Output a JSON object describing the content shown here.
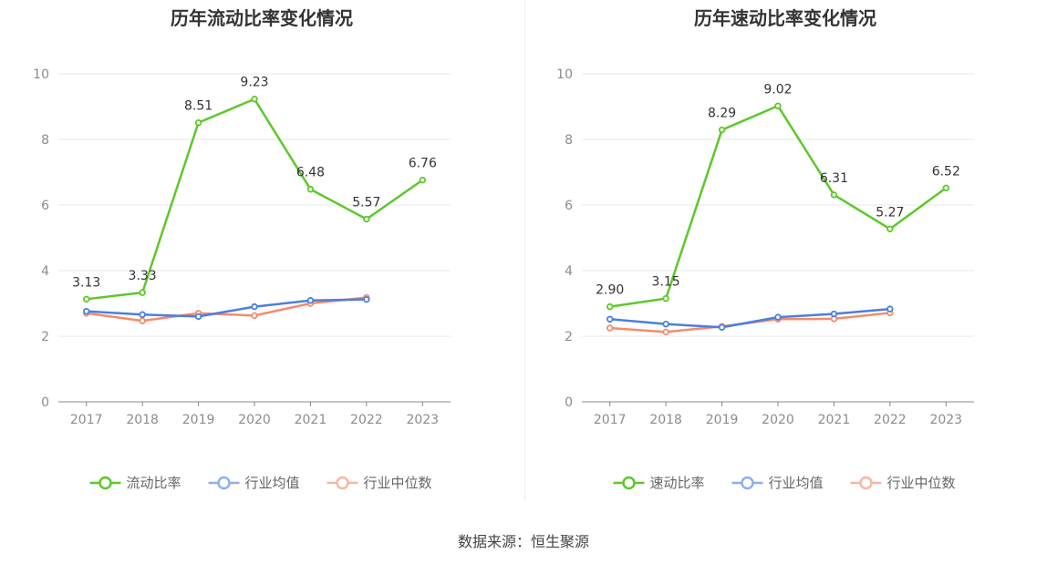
{
  "source": "数据来源：恒生聚源",
  "charts": [
    {
      "title": "历年流动比率变化情况",
      "chart_data": {
        "type": "line",
        "title": "历年流动比率变化情况",
        "categories": [
          "2017",
          "2018",
          "2019",
          "2020",
          "2021",
          "2022",
          "2023"
        ],
        "ylim": [
          0,
          10
        ],
        "yticks": [
          0,
          2,
          4,
          6,
          8,
          10
        ],
        "grid": true,
        "legend_position": "bottom",
        "series": [
          {
            "name": "流动比率",
            "color": "#5dc82a",
            "values": [
              3.13,
              3.33,
              8.51,
              9.23,
              6.48,
              5.57,
              6.76
            ],
            "labels": [
              "3.13",
              "3.33",
              "8.51",
              "9.23",
              "6.48",
              "5.57",
              "6.76"
            ]
          },
          {
            "name": "行业均值",
            "color": "#4a7fe0",
            "values": [
              2.76,
              2.66,
              2.6,
              2.9,
              3.09,
              3.12,
              null
            ]
          },
          {
            "name": "行业中位数",
            "color": "#f58a6a",
            "values": [
              2.7,
              2.47,
              2.7,
              2.63,
              3.0,
              3.18,
              null
            ]
          }
        ]
      }
    },
    {
      "title": "历年速动比率变化情况",
      "chart_data": {
        "type": "line",
        "title": "历年速动比率变化情况",
        "categories": [
          "2017",
          "2018",
          "2019",
          "2020",
          "2021",
          "2022",
          "2023"
        ],
        "ylim": [
          0,
          10
        ],
        "yticks": [
          0,
          2,
          4,
          6,
          8,
          10
        ],
        "grid": true,
        "legend_position": "bottom",
        "series": [
          {
            "name": "速动比率",
            "color": "#5dc82a",
            "values": [
              2.9,
              3.15,
              8.29,
              9.02,
              6.31,
              5.27,
              6.52
            ],
            "labels": [
              "2.90",
              "3.15",
              "8.29",
              "9.02",
              "6.31",
              "5.27",
              "6.52"
            ]
          },
          {
            "name": "行业均值",
            "color": "#4a7fe0",
            "values": [
              2.52,
              2.37,
              2.27,
              2.58,
              2.68,
              2.83,
              null
            ]
          },
          {
            "name": "行业中位数",
            "color": "#f58a6a",
            "values": [
              2.25,
              2.13,
              2.3,
              2.52,
              2.53,
              2.71,
              null
            ]
          }
        ]
      }
    }
  ]
}
